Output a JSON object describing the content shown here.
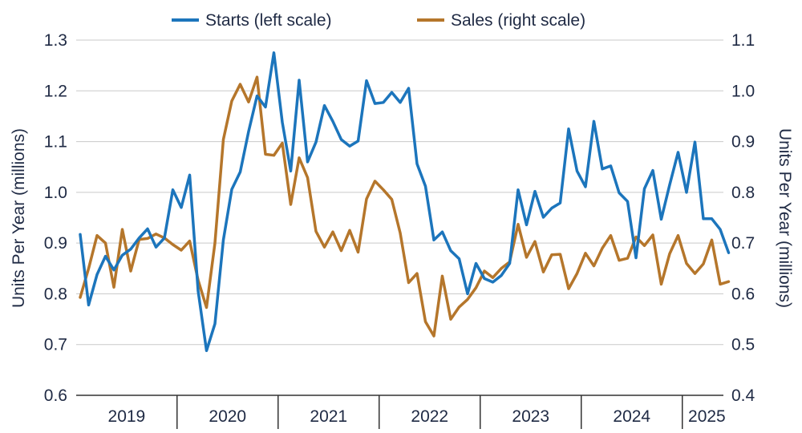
{
  "chart_data": {
    "type": "line",
    "title": "",
    "y_left_label": "Units Per Year (millions)",
    "y_right_label": "Units Per Year (millions)",
    "y_left_range": [
      0.6,
      1.3
    ],
    "y_right_range": [
      0.4,
      1.1
    ],
    "y_left_ticks": [
      "0.6",
      "0.7",
      "0.8",
      "0.9",
      "1.0",
      "1.1",
      "1.2",
      "1.3"
    ],
    "y_right_ticks": [
      "0.4",
      "0.5",
      "0.6",
      "0.7",
      "0.8",
      "0.9",
      "1.0",
      "1.1"
    ],
    "x_ticks": [
      "2019",
      "2020",
      "2021",
      "2022",
      "2023",
      "2024",
      "2025"
    ],
    "grid": "horizontal",
    "legend_position": "top-center",
    "series": [
      {
        "name": "Starts (left scale)",
        "axis": "left",
        "color": "#1c75bc",
        "values": [
          0.917,
          0.778,
          0.838,
          0.874,
          0.847,
          0.876,
          0.888,
          0.91,
          0.928,
          0.892,
          0.91,
          1.005,
          0.97,
          1.034,
          0.806,
          0.688,
          0.741,
          0.906,
          1.006,
          1.04,
          1.12,
          1.19,
          1.168,
          1.275,
          1.138,
          1.042,
          1.221,
          1.06,
          1.099,
          1.171,
          1.14,
          1.104,
          1.091,
          1.101,
          1.22,
          1.175,
          1.177,
          1.197,
          1.177,
          1.205,
          1.056,
          1.012,
          0.906,
          0.922,
          0.885,
          0.869,
          0.8,
          0.86,
          0.83,
          0.823,
          0.836,
          0.86,
          1.005,
          0.936,
          1.002,
          0.951,
          0.969,
          0.979,
          1.125,
          1.042,
          1.011,
          1.14,
          1.046,
          1.052,
          0.999,
          0.982,
          0.871,
          1.007,
          1.043,
          0.947,
          1.015,
          1.079,
          1.0,
          1.099,
          0.948,
          0.948,
          0.927,
          0.881
        ]
      },
      {
        "name": "Sales (right scale)",
        "axis": "right",
        "color": "#b5762b",
        "values": [
          0.593,
          0.65,
          0.715,
          0.7,
          0.613,
          0.727,
          0.645,
          0.707,
          0.709,
          0.718,
          0.71,
          0.697,
          0.686,
          0.704,
          0.627,
          0.573,
          0.7,
          0.904,
          0.98,
          1.013,
          0.978,
          1.027,
          0.875,
          0.873,
          0.897,
          0.776,
          0.868,
          0.829,
          0.723,
          0.692,
          0.722,
          0.685,
          0.725,
          0.682,
          0.787,
          0.822,
          0.805,
          0.786,
          0.72,
          0.622,
          0.64,
          0.545,
          0.517,
          0.635,
          0.55,
          0.574,
          0.589,
          0.612,
          0.645,
          0.632,
          0.65,
          0.663,
          0.737,
          0.672,
          0.703,
          0.643,
          0.677,
          0.678,
          0.61,
          0.64,
          0.68,
          0.655,
          0.69,
          0.715,
          0.666,
          0.67,
          0.712,
          0.695,
          0.716,
          0.619,
          0.679,
          0.715,
          0.66,
          0.64,
          0.659,
          0.706,
          0.619,
          0.624
        ]
      }
    ]
  }
}
